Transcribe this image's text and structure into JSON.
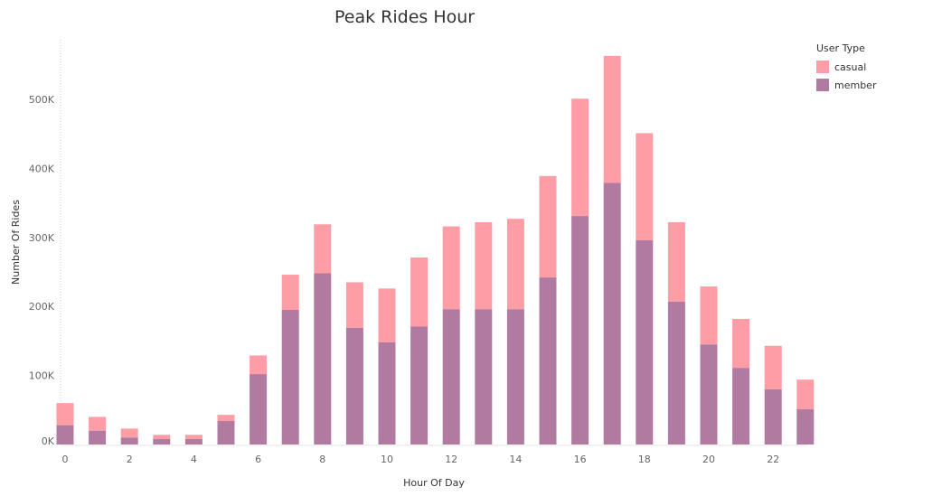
{
  "chart_data": {
    "type": "bar",
    "stacked": true,
    "title": "Peak Rides Hour",
    "xlabel": "Hour Of Day",
    "ylabel": "Number Of Rides",
    "categories": [
      0,
      1,
      2,
      3,
      4,
      5,
      6,
      7,
      8,
      9,
      10,
      11,
      12,
      13,
      14,
      15,
      16,
      17,
      18,
      19,
      20,
      21,
      22,
      23
    ],
    "x_tick_labels": [
      "0",
      "2",
      "4",
      "6",
      "8",
      "10",
      "12",
      "14",
      "16",
      "18",
      "20",
      "22"
    ],
    "y_tick_labels": [
      "0K",
      "100K",
      "200K",
      "300K",
      "400K",
      "500K"
    ],
    "ylim": [
      0,
      580000
    ],
    "legend_title": "User Type",
    "legend_position": "top-right",
    "series": [
      {
        "name": "member",
        "color": "#b07aa1",
        "values": [
          28000,
          20000,
          10000,
          8000,
          8000,
          34000,
          102000,
          195000,
          248000,
          169000,
          148000,
          171000,
          196000,
          196000,
          196000,
          242000,
          331000,
          379000,
          296000,
          207000,
          145000,
          111000,
          80000,
          51000
        ]
      },
      {
        "name": "casual",
        "color": "#ff9da7",
        "values": [
          32000,
          20000,
          13000,
          6000,
          6000,
          9000,
          27000,
          51000,
          71000,
          66000,
          78000,
          100000,
          120000,
          126000,
          131000,
          147000,
          170000,
          184000,
          155000,
          115000,
          84000,
          71000,
          63000,
          43000
        ]
      }
    ]
  }
}
